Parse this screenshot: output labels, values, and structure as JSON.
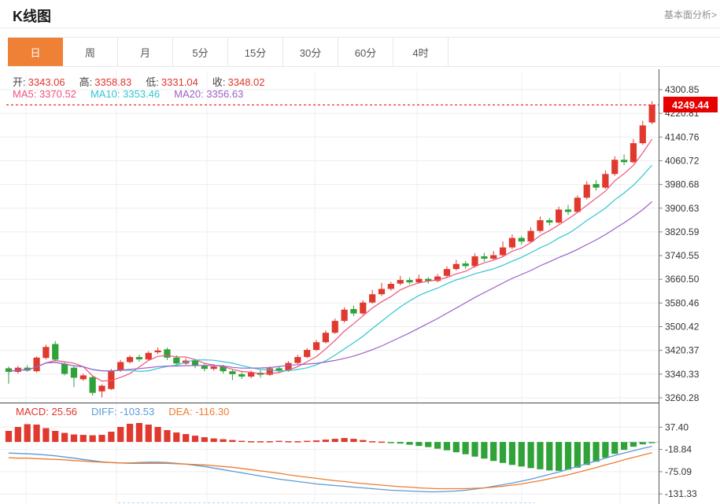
{
  "header": {
    "title": "K线图",
    "link_label": "基本面分析>"
  },
  "tabs": {
    "active_index": 0,
    "active_color": "#ee8135",
    "items": [
      {
        "name": "day",
        "label": "日"
      },
      {
        "name": "week",
        "label": "周"
      },
      {
        "name": "month",
        "label": "月"
      },
      {
        "name": "5min",
        "label": "5分"
      },
      {
        "name": "15min",
        "label": "15分"
      },
      {
        "name": "30min",
        "label": "30分"
      },
      {
        "name": "60min",
        "label": "60分"
      },
      {
        "name": "4hour",
        "label": "4时"
      }
    ]
  },
  "legend": {
    "label_color": "#444444",
    "value_color": "#e0342b",
    "ohlc": [
      {
        "name": "open",
        "label": "开:",
        "value": "3343.06"
      },
      {
        "name": "high",
        "label": "高:",
        "value": "3358.83"
      },
      {
        "name": "low",
        "label": "低:",
        "value": "3331.04"
      },
      {
        "name": "close",
        "label": "收:",
        "value": "3348.02"
      }
    ],
    "ma": [
      {
        "name": "ma5",
        "label": "MA5:",
        "value": "3370.52",
        "color": "#ef537c"
      },
      {
        "name": "ma10",
        "label": "MA10:",
        "value": "3353.46",
        "color": "#32c5d2"
      },
      {
        "name": "ma20",
        "label": "MA20:",
        "value": "3356.63",
        "color": "#9c5fc8"
      }
    ],
    "macd": [
      {
        "name": "macd",
        "label": "MACD:",
        "value": "25.56",
        "color": "#e0342b"
      },
      {
        "name": "diff",
        "label": "DIFF:",
        "value": "-103.53",
        "color": "#5b9bd5"
      },
      {
        "name": "dea",
        "label": "DEA:",
        "value": "-116.30",
        "color": "#ee7d30"
      }
    ]
  },
  "main_chart": {
    "last_price": "4249.44",
    "badge_color": "#e60000",
    "up_color": "#e0392e",
    "down_color": "#2fa238"
  },
  "chart_data": {
    "type": "candlestick",
    "title": "K线图",
    "main": {
      "y_ticks": [
        "4300.85",
        "4220.81",
        "4140.76",
        "4060.72",
        "3980.68",
        "3900.63",
        "3820.59",
        "3740.55",
        "3660.50",
        "3580.46",
        "3500.42",
        "3420.37",
        "3340.33",
        "3260.28"
      ],
      "y_max": 4300.85,
      "y_min": 3260.28,
      "last_price_value": 4249.44,
      "ma_periods": [
        5,
        10,
        20
      ],
      "candles": [
        [
          3360,
          3366,
          3308,
          3348
        ],
        [
          3348,
          3368,
          3342,
          3362
        ],
        [
          3362,
          3370,
          3348,
          3352
        ],
        [
          3350,
          3400,
          3346,
          3396
        ],
        [
          3395,
          3440,
          3390,
          3432
        ],
        [
          3442,
          3452,
          3384,
          3389
        ],
        [
          3375,
          3381,
          3336,
          3341
        ],
        [
          3362,
          3368,
          3296,
          3328
        ],
        [
          3323,
          3342,
          3318,
          3336
        ],
        [
          3330,
          3335,
          3268,
          3277
        ],
        [
          3282,
          3306,
          3262,
          3301
        ],
        [
          3290,
          3358,
          3286,
          3352
        ],
        [
          3352,
          3388,
          3348,
          3381
        ],
        [
          3381,
          3404,
          3376,
          3398
        ],
        [
          3398,
          3406,
          3382,
          3390
        ],
        [
          3390,
          3418,
          3386,
          3412
        ],
        [
          3414,
          3430,
          3408,
          3420
        ],
        [
          3424,
          3430,
          3388,
          3396
        ],
        [
          3396,
          3404,
          3368,
          3376
        ],
        [
          3376,
          3394,
          3372,
          3386
        ],
        [
          3386,
          3392,
          3360,
          3368
        ],
        [
          3368,
          3378,
          3350,
          3358
        ],
        [
          3358,
          3374,
          3352,
          3366
        ],
        [
          3366,
          3372,
          3342,
          3350
        ],
        [
          3350,
          3356,
          3320,
          3340
        ],
        [
          3340,
          3348,
          3324,
          3332
        ],
        [
          3332,
          3352,
          3326,
          3345
        ],
        [
          3345,
          3354,
          3328,
          3338
        ],
        [
          3338,
          3366,
          3334,
          3360
        ],
        [
          3360,
          3368,
          3344,
          3352
        ],
        [
          3352,
          3384,
          3348,
          3378
        ],
        [
          3378,
          3406,
          3374,
          3398
        ],
        [
          3398,
          3428,
          3394,
          3422
        ],
        [
          3422,
          3456,
          3418,
          3448
        ],
        [
          3448,
          3488,
          3444,
          3480
        ],
        [
          3480,
          3528,
          3476,
          3520
        ],
        [
          3520,
          3566,
          3514,
          3558
        ],
        [
          3560,
          3572,
          3536,
          3545
        ],
        [
          3545,
          3590,
          3540,
          3582
        ],
        [
          3582,
          3625,
          3578,
          3610
        ],
        [
          3610,
          3648,
          3604,
          3628
        ],
        [
          3628,
          3652,
          3622,
          3645
        ],
        [
          3646,
          3672,
          3640,
          3658
        ],
        [
          3658,
          3666,
          3644,
          3650
        ],
        [
          3650,
          3676,
          3646,
          3662
        ],
        [
          3662,
          3668,
          3646,
          3655
        ],
        [
          3655,
          3678,
          3650,
          3670
        ],
        [
          3672,
          3704,
          3668,
          3695
        ],
        [
          3695,
          3726,
          3690,
          3712
        ],
        [
          3714,
          3722,
          3696,
          3705
        ],
        [
          3705,
          3748,
          3700,
          3738
        ],
        [
          3738,
          3750,
          3720,
          3730
        ],
        [
          3730,
          3756,
          3724,
          3742
        ],
        [
          3742,
          3788,
          3738,
          3768
        ],
        [
          3768,
          3812,
          3762,
          3800
        ],
        [
          3800,
          3806,
          3778,
          3788
        ],
        [
          3788,
          3836,
          3784,
          3824
        ],
        [
          3824,
          3872,
          3818,
          3860
        ],
        [
          3860,
          3868,
          3842,
          3852
        ],
        [
          3852,
          3906,
          3848,
          3896
        ],
        [
          3896,
          3912,
          3878,
          3888
        ],
        [
          3888,
          3944,
          3884,
          3936
        ],
        [
          3936,
          3992,
          3930,
          3980
        ],
        [
          3982,
          3996,
          3960,
          3970
        ],
        [
          3970,
          4028,
          3966,
          4016
        ],
        [
          4016,
          4076,
          4010,
          4064
        ],
        [
          4064,
          4082,
          4046,
          4056
        ],
        [
          4056,
          4134,
          4052,
          4120
        ],
        [
          4120,
          4196,
          4114,
          4180
        ],
        [
          4190,
          4262,
          4184,
          4249.44
        ]
      ]
    },
    "macd": {
      "y_ticks": [
        "37.40",
        "-18.84",
        "-75.09",
        "-131.33"
      ],
      "y_max": 37.4,
      "y_min": -131.33,
      "hist": [
        28,
        38,
        45,
        44,
        35,
        28,
        23,
        19,
        18,
        17,
        18,
        26,
        38,
        46,
        48,
        44,
        38,
        30,
        24,
        20,
        16,
        12,
        9,
        7,
        5,
        3,
        2,
        2,
        2,
        3,
        2,
        2,
        3,
        4,
        6,
        8,
        10,
        8,
        5,
        2,
        1,
        -2,
        -4,
        -7,
        -10,
        -13,
        -17,
        -21,
        -26,
        -31,
        -37,
        -42,
        -48,
        -53,
        -58,
        -62,
        -66,
        -69,
        -72,
        -73,
        -70,
        -65,
        -58,
        -50,
        -40,
        -30,
        -20,
        -12,
        -6,
        -3
      ],
      "diff": [
        -28,
        -29,
        -30,
        -31,
        -33,
        -35,
        -38,
        -41,
        -44,
        -47,
        -50,
        -52,
        -53,
        -53,
        -52,
        -51,
        -51,
        -52,
        -54,
        -56,
        -59,
        -62,
        -66,
        -70,
        -74,
        -78,
        -82,
        -86,
        -90,
        -94,
        -97,
        -100,
        -103,
        -106,
        -108,
        -110,
        -112,
        -114,
        -116,
        -118,
        -120,
        -122,
        -123,
        -124,
        -125,
        -126,
        -126,
        -125,
        -124,
        -122,
        -119,
        -116,
        -112,
        -108,
        -104,
        -99,
        -94,
        -88,
        -82,
        -76,
        -69,
        -62,
        -55,
        -48,
        -41,
        -34,
        -28,
        -22,
        -16,
        -11
      ],
      "dea": [
        -40,
        -41,
        -41,
        -42,
        -43,
        -44,
        -45,
        -47,
        -48,
        -50,
        -51,
        -52,
        -53,
        -54,
        -54,
        -54,
        -54,
        -54,
        -55,
        -56,
        -57,
        -58,
        -60,
        -62,
        -64,
        -67,
        -70,
        -73,
        -76,
        -79,
        -83,
        -86,
        -89,
        -92,
        -95,
        -98,
        -100,
        -103,
        -105,
        -107,
        -109,
        -111,
        -113,
        -114,
        -116,
        -117,
        -118,
        -118,
        -118,
        -118,
        -117,
        -116,
        -114,
        -112,
        -109,
        -106,
        -102,
        -98,
        -93,
        -88,
        -83,
        -77,
        -71,
        -65,
        -58,
        -52,
        -45,
        -39,
        -33,
        -27
      ],
      "diff_color": "#5b9bd5",
      "dea_color": "#ee7d30"
    }
  }
}
